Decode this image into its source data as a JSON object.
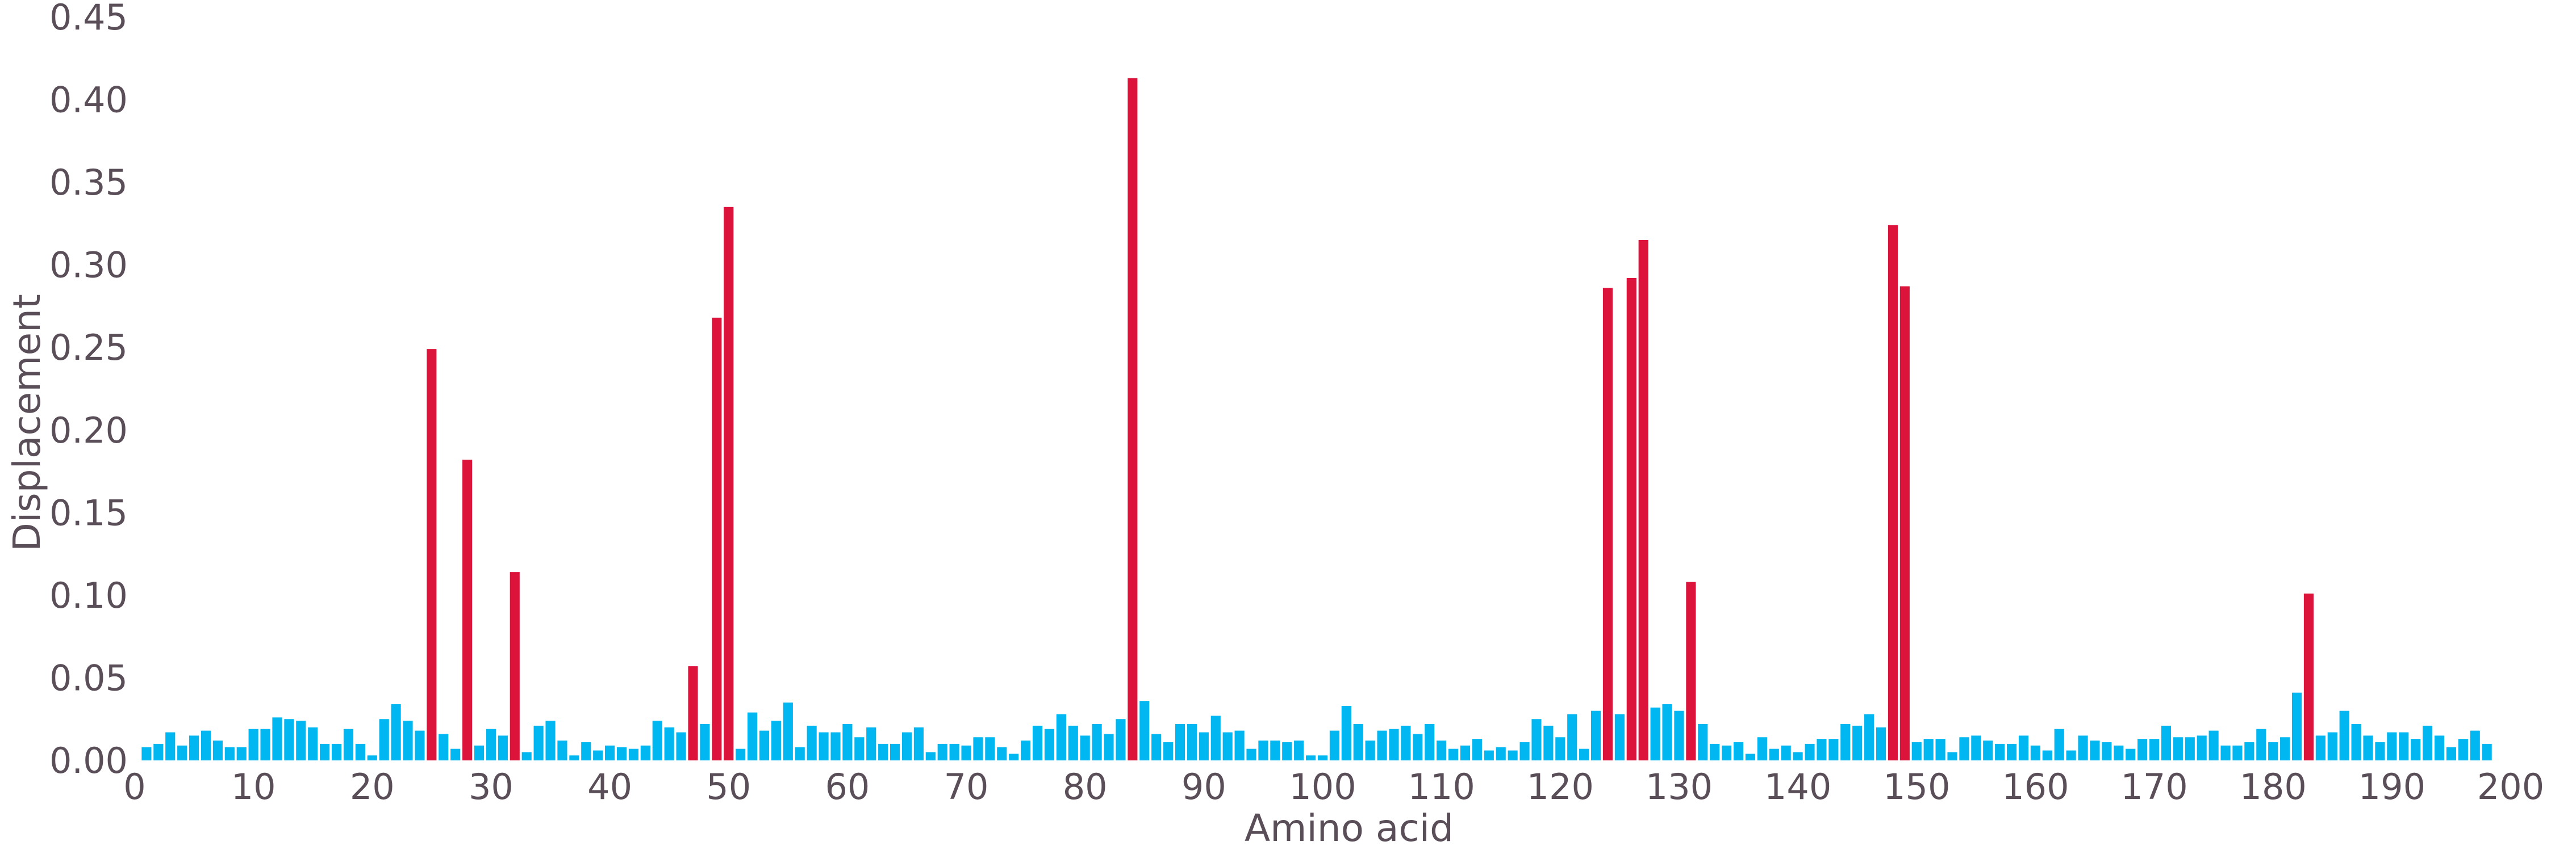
{
  "chart_data": {
    "type": "bar",
    "xlabel": "Amino acid",
    "ylabel": "Displacement",
    "xlim": [
      0,
      200
    ],
    "ylim": [
      0,
      0.45
    ],
    "xticks": [
      0,
      10,
      20,
      30,
      40,
      50,
      60,
      70,
      80,
      90,
      100,
      110,
      120,
      130,
      140,
      150,
      160,
      170,
      180,
      190,
      200
    ],
    "yticks": [
      "0.00",
      "0.05",
      "0.10",
      "0.15",
      "0.20",
      "0.25",
      "0.30",
      "0.35",
      "0.40",
      "0.45"
    ],
    "grid": false,
    "colors": {
      "normal": "#00b7f1",
      "highlight": "#dc143c",
      "text": "#5a4f58"
    },
    "highlighted_x": [
      25,
      28,
      32,
      47,
      49,
      50,
      84,
      124,
      126,
      127,
      131,
      148,
      149,
      183
    ],
    "x": [
      1,
      2,
      3,
      4,
      5,
      6,
      7,
      8,
      9,
      10,
      11,
      12,
      13,
      14,
      15,
      16,
      17,
      18,
      19,
      20,
      21,
      22,
      23,
      24,
      25,
      26,
      27,
      28,
      29,
      30,
      31,
      32,
      33,
      34,
      35,
      36,
      37,
      38,
      39,
      40,
      41,
      42,
      43,
      44,
      45,
      46,
      47,
      48,
      49,
      50,
      51,
      52,
      53,
      54,
      55,
      56,
      57,
      58,
      59,
      60,
      61,
      62,
      63,
      64,
      65,
      66,
      67,
      68,
      69,
      70,
      71,
      72,
      73,
      74,
      75,
      76,
      77,
      78,
      79,
      80,
      81,
      82,
      83,
      84,
      85,
      86,
      87,
      88,
      89,
      90,
      91,
      92,
      93,
      94,
      95,
      96,
      97,
      98,
      99,
      100,
      101,
      102,
      103,
      104,
      105,
      106,
      107,
      108,
      109,
      110,
      111,
      112,
      113,
      114,
      115,
      116,
      117,
      118,
      119,
      120,
      121,
      122,
      123,
      124,
      125,
      126,
      127,
      128,
      129,
      130,
      131,
      132,
      133,
      134,
      135,
      136,
      137,
      138,
      139,
      140,
      141,
      142,
      143,
      144,
      145,
      146,
      147,
      148,
      149,
      150,
      151,
      152,
      153,
      154,
      155,
      156,
      157,
      158,
      159,
      160,
      161,
      162,
      163,
      164,
      165,
      166,
      167,
      168,
      169,
      170,
      171,
      172,
      173,
      174,
      175,
      176,
      177,
      178,
      179,
      180,
      181,
      182,
      183,
      184,
      185,
      186,
      187,
      188,
      189,
      190,
      191,
      192,
      193,
      194,
      195,
      196,
      197,
      198
    ],
    "values": [
      0.008,
      0.01,
      0.017,
      0.009,
      0.015,
      0.018,
      0.012,
      0.008,
      0.008,
      0.019,
      0.019,
      0.026,
      0.025,
      0.024,
      0.02,
      0.01,
      0.01,
      0.019,
      0.01,
      0.003,
      0.025,
      0.034,
      0.024,
      0.018,
      0.249,
      0.016,
      0.007,
      0.182,
      0.009,
      0.019,
      0.015,
      0.114,
      0.005,
      0.021,
      0.024,
      0.012,
      0.003,
      0.011,
      0.006,
      0.009,
      0.008,
      0.007,
      0.009,
      0.024,
      0.02,
      0.017,
      0.057,
      0.022,
      0.268,
      0.335,
      0.007,
      0.029,
      0.018,
      0.024,
      0.035,
      0.008,
      0.021,
      0.017,
      0.017,
      0.022,
      0.014,
      0.02,
      0.01,
      0.01,
      0.017,
      0.02,
      0.005,
      0.01,
      0.01,
      0.009,
      0.014,
      0.014,
      0.008,
      0.004,
      0.012,
      0.021,
      0.019,
      0.028,
      0.021,
      0.015,
      0.022,
      0.016,
      0.025,
      0.413,
      0.036,
      0.016,
      0.011,
      0.022,
      0.022,
      0.017,
      0.027,
      0.017,
      0.018,
      0.007,
      0.012,
      0.012,
      0.011,
      0.012,
      0.003,
      0.003,
      0.018,
      0.033,
      0.022,
      0.012,
      0.018,
      0.019,
      0.021,
      0.016,
      0.022,
      0.012,
      0.007,
      0.009,
      0.013,
      0.006,
      0.008,
      0.006,
      0.011,
      0.025,
      0.021,
      0.014,
      0.028,
      0.007,
      0.03,
      0.286,
      0.028,
      0.292,
      0.315,
      0.032,
      0.034,
      0.03,
      0.108,
      0.022,
      0.01,
      0.009,
      0.011,
      0.004,
      0.014,
      0.007,
      0.009,
      0.005,
      0.01,
      0.013,
      0.013,
      0.022,
      0.021,
      0.028,
      0.02,
      0.324,
      0.287,
      0.011,
      0.013,
      0.013,
      0.005,
      0.014,
      0.015,
      0.012,
      0.01,
      0.01,
      0.015,
      0.009,
      0.006,
      0.019,
      0.006,
      0.015,
      0.012,
      0.011,
      0.009,
      0.007,
      0.013,
      0.013,
      0.021,
      0.014,
      0.014,
      0.015,
      0.018,
      0.009,
      0.009,
      0.011,
      0.019,
      0.011,
      0.014,
      0.041,
      0.101,
      0.015,
      0.017,
      0.03,
      0.022,
      0.015,
      0.011,
      0.017,
      0.017,
      0.013,
      0.021,
      0.015,
      0.008,
      0.013,
      0.018,
      0.01
    ]
  }
}
